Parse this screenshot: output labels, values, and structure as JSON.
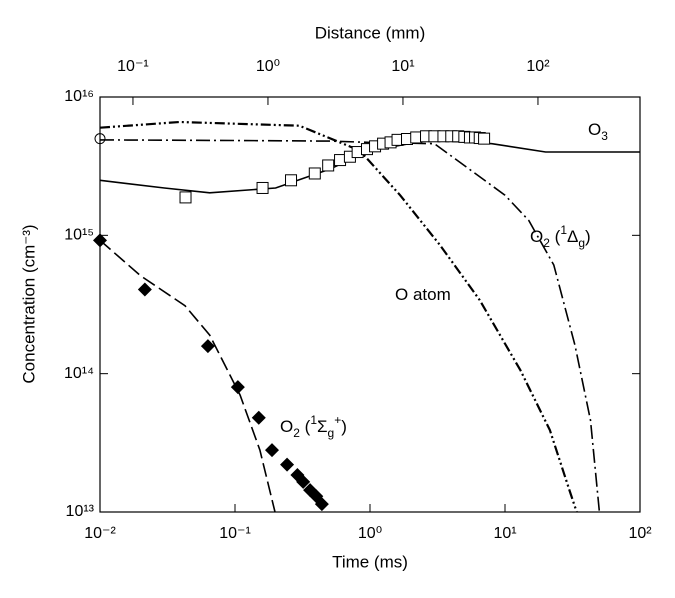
{
  "chart_data": {
    "type": "line",
    "xlabel": "Time (ms)",
    "ylabel": "Concentration (cm⁻³)",
    "x2label": "Distance (mm)",
    "xscale": "log",
    "yscale": "log",
    "xlim": [
      0.01,
      100
    ],
    "ylim": [
      10000000000000.0,
      1e+16
    ],
    "x2lim": [
      0.057,
      570
    ],
    "xticks": [
      {
        "value": 0.01,
        "label": "10⁻²"
      },
      {
        "value": 0.1,
        "label": "10⁻¹"
      },
      {
        "value": 1,
        "label": "10⁰"
      },
      {
        "value": 10,
        "label": "10¹"
      },
      {
        "value": 100,
        "label": "10²"
      }
    ],
    "yticks": [
      {
        "value": 10000000000000.0,
        "label": "10¹³"
      },
      {
        "value": 100000000000000.0,
        "label": "10¹⁴"
      },
      {
        "value": 1000000000000000.0,
        "label": "10¹⁵"
      },
      {
        "value": 1e+16,
        "label": "10¹⁶"
      }
    ],
    "x2ticks": [
      {
        "value": 0.1,
        "label": "10⁻¹"
      },
      {
        "value": 1,
        "label": "10⁰"
      },
      {
        "value": 10,
        "label": "10¹"
      },
      {
        "value": 100,
        "label": "10²"
      }
    ],
    "series": [
      {
        "style": "solid",
        "color": "#000000",
        "x": [
          0.01,
          0.03,
          0.065,
          0.2,
          0.5,
          1,
          2.8,
          8,
          20,
          100
        ],
        "values": [
          2500000000000000.0,
          2200000000000000.0,
          2030000000000000.0,
          2200000000000000.0,
          3000000000000000.0,
          4100000000000000.0,
          4900000000000000.0,
          4600000000000000.0,
          4000000000000000.0,
          4000000000000000.0
        ]
      },
      {
        "style": "dash-dot",
        "color": "#000000",
        "x": [
          0.01,
          0.1,
          0.5,
          1,
          3,
          10,
          15,
          23,
          33,
          43,
          50
        ],
        "values": [
          4900000000000000.0,
          4850000000000000.0,
          4800000000000000.0,
          4700000000000000.0,
          4600000000000000.0,
          1950000000000000.0,
          1280000000000000.0,
          610000000000000.0,
          160000000000000.0,
          46000000000000.0,
          10000000000000.0
        ]
      },
      {
        "style": "dash-dot-dot",
        "color": "#000000",
        "x": [
          0.01,
          0.039,
          0.3,
          0.84,
          1.67,
          3.3,
          6.5,
          13,
          21.5,
          30,
          34
        ],
        "values": [
          6000000000000000.0,
          6600000000000000.0,
          6200000000000000.0,
          4100000000000000.0,
          1950000000000000.0,
          850000000000000.0,
          340000000000000.0,
          106000000000000.0,
          39000000000000.0,
          14400000000000.0,
          10000000000000.0
        ]
      },
      {
        "style": "dashed",
        "color": "#000000",
        "x": [
          0.01,
          0.02,
          0.0426,
          0.065,
          0.109,
          0.153,
          0.198
        ],
        "values": [
          920000000000000.0,
          510000000000000.0,
          310000000000000.0,
          190000000000000.0,
          70000000000000.0,
          28000000000000.0,
          10000000000000.0
        ]
      },
      {
        "style": "none",
        "marker": "square",
        "color": "#000000",
        "x": [
          0.043,
          0.16,
          0.26,
          0.39,
          0.49,
          0.6,
          0.71,
          0.81,
          0.95,
          1.09,
          1.25,
          1.42,
          1.6,
          1.88,
          2.2,
          2.6,
          3,
          3.5,
          4,
          4.5,
          5,
          5.5,
          6,
          6.5,
          7
        ],
        "values": [
          1880000000000000.0,
          2200000000000000.0,
          2500000000000000.0,
          2800000000000000.0,
          3200000000000000.0,
          3500000000000000.0,
          3700000000000000.0,
          4000000000000000.0,
          4200000000000000.0,
          4400000000000000.0,
          4600000000000000.0,
          4700000000000000.0,
          4900000000000000.0,
          4970000000000000.0,
          5100000000000000.0,
          5200000000000000.0,
          5200000000000000.0,
          5200000000000000.0,
          5200000000000000.0,
          5200000000000000.0,
          5150000000000000.0,
          5100000000000000.0,
          5100000000000000.0,
          5050000000000000.0,
          5000000000000000.0
        ]
      },
      {
        "style": "none",
        "marker": "diamond",
        "color": "#000000",
        "x": [
          0.01,
          0.0215,
          0.063,
          0.105,
          0.15,
          0.188,
          0.243,
          0.29,
          0.32,
          0.36,
          0.4,
          0.44
        ],
        "values": [
          920000000000000.0,
          406000000000000.0,
          158000000000000.0,
          80000000000000.0,
          48000000000000.0,
          28000000000000.0,
          22000000000000.0,
          18500000000000.0,
          16500000000000.0,
          14400000000000.0,
          13000000000000.0,
          11400000000000.0
        ]
      },
      {
        "style": "none",
        "marker": "circle",
        "color": "#000000",
        "x": [
          0.01
        ],
        "values": [
          5000000000000000.0
        ]
      }
    ],
    "annotations": [
      {
        "parts": [
          {
            "t": "O"
          },
          {
            "t": "3",
            "sub": true
          }
        ]
      },
      {
        "parts": [
          {
            "t": "O"
          },
          {
            "t": "2",
            "sub": true
          },
          {
            "t": " ("
          },
          {
            "t": "1",
            "sup": true
          },
          {
            "t": "Δ"
          },
          {
            "t": "g",
            "sub": true
          },
          {
            "t": ")"
          }
        ]
      },
      {
        "parts": [
          {
            "t": "O atom"
          }
        ]
      },
      {
        "parts": [
          {
            "t": "O"
          },
          {
            "t": "2",
            "sub": true
          },
          {
            "t": " ("
          },
          {
            "t": "1",
            "sup": true
          },
          {
            "t": "Σ"
          },
          {
            "t": "g",
            "sub": true
          },
          {
            "t": "+",
            "sup": true
          },
          {
            "t": ")"
          }
        ]
      }
    ]
  }
}
